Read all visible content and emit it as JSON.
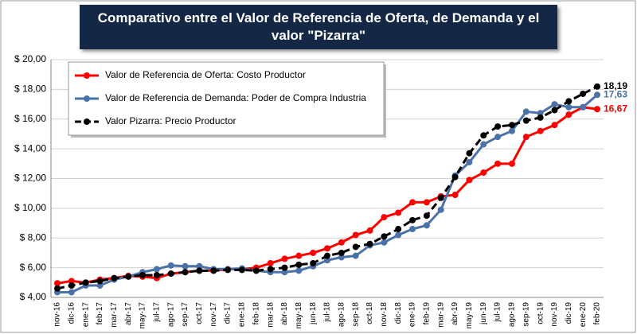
{
  "chart_data": {
    "type": "line",
    "title": "Comparativo entre el Valor de Referencia de Oferta, de Demanda y el valor \"Pizarra\"",
    "categories": [
      "nov-16",
      "dic-16",
      "ene-17",
      "feb-17",
      "mar-17",
      "abr-17",
      "may-17",
      "jul-17",
      "ago-17",
      "sep-17",
      "oct-17",
      "nov-17",
      "dic-17",
      "ene-18",
      "feb-18",
      "mar-18",
      "abr-18",
      "may-18",
      "jun-18",
      "jul-18",
      "ago-18",
      "sep-18",
      "oct-18",
      "nov-18",
      "dic-18",
      "ene-19",
      "feb-19",
      "mar-19",
      "abr-19",
      "may-19",
      "jun-19",
      "jul-19",
      "ago-19",
      "sep-19",
      "oct-19",
      "nov-19",
      "dic-19",
      "ene-20",
      "feb-20"
    ],
    "series": [
      {
        "name": "Valor de Referencia de Oferta: Costo Productor",
        "color": "#ff0000",
        "dashed": false,
        "values": [
          4.95,
          5.1,
          5.0,
          5.2,
          5.3,
          5.45,
          5.4,
          5.3,
          5.6,
          5.7,
          5.8,
          5.8,
          5.9,
          5.9,
          6.0,
          6.3,
          6.6,
          6.8,
          7.0,
          7.3,
          7.7,
          8.2,
          8.5,
          9.4,
          9.7,
          10.4,
          10.4,
          10.8,
          10.9,
          11.9,
          12.4,
          13.0,
          13.0,
          14.8,
          15.2,
          15.6,
          16.3,
          16.8,
          16.67
        ],
        "value_labels": [
          null,
          null,
          null,
          null,
          null,
          null,
          null,
          null,
          null,
          null,
          null,
          null,
          null,
          null,
          null,
          null,
          null,
          null,
          null,
          null,
          null,
          null,
          null,
          null,
          null,
          null,
          null,
          null,
          null,
          null,
          null,
          null,
          null,
          null,
          null,
          null,
          null,
          null,
          "16,67"
        ]
      },
      {
        "name": "Valor de Referencia de Demanda: Poder de Compra Industria",
        "color": "#4a72a8",
        "dashed": false,
        "values": [
          4.35,
          4.35,
          4.8,
          4.8,
          5.2,
          5.4,
          5.7,
          5.9,
          6.15,
          6.1,
          6.1,
          5.9,
          5.9,
          5.95,
          5.8,
          5.7,
          5.7,
          5.8,
          6.1,
          6.5,
          6.7,
          6.8,
          7.5,
          7.7,
          8.2,
          8.6,
          8.85,
          9.9,
          12.2,
          13.1,
          14.3,
          14.8,
          15.2,
          16.5,
          16.4,
          17.0,
          16.8,
          16.8,
          17.63
        ],
        "value_labels": [
          null,
          null,
          null,
          null,
          null,
          null,
          null,
          null,
          null,
          null,
          null,
          null,
          null,
          null,
          null,
          null,
          null,
          null,
          null,
          null,
          null,
          null,
          null,
          null,
          null,
          null,
          null,
          null,
          null,
          null,
          null,
          null,
          null,
          null,
          null,
          null,
          null,
          null,
          "17,63"
        ]
      },
      {
        "name": "Valor Pizarra: Precio Productor",
        "color": "#000000",
        "dashed": true,
        "values": [
          4.6,
          4.8,
          5.0,
          5.1,
          5.3,
          5.4,
          5.5,
          5.5,
          5.6,
          5.7,
          5.8,
          5.8,
          5.85,
          5.85,
          5.8,
          5.9,
          6.0,
          6.2,
          6.3,
          6.8,
          7.0,
          7.4,
          7.6,
          8.1,
          8.6,
          9.2,
          9.5,
          10.7,
          12.1,
          13.7,
          14.9,
          15.5,
          15.6,
          15.9,
          16.1,
          16.6,
          17.2,
          17.7,
          18.19
        ],
        "value_labels": [
          null,
          null,
          null,
          null,
          null,
          null,
          null,
          null,
          null,
          null,
          null,
          null,
          null,
          null,
          null,
          null,
          null,
          null,
          null,
          null,
          null,
          null,
          null,
          null,
          null,
          null,
          null,
          null,
          null,
          null,
          null,
          null,
          null,
          null,
          null,
          null,
          null,
          null,
          "18,19"
        ]
      }
    ],
    "ylim": [
      4,
      20
    ],
    "yticks": [
      {
        "value": 4,
        "label": "$ 4,00"
      },
      {
        "value": 6,
        "label": "$ 6,00"
      },
      {
        "value": 8,
        "label": "$ 8,00"
      },
      {
        "value": 10,
        "label": "$ 10,00"
      },
      {
        "value": 12,
        "label": "$ 12,00"
      },
      {
        "value": 14,
        "label": "$ 14,00"
      },
      {
        "value": 16,
        "label": "$ 16,00"
      },
      {
        "value": 18,
        "label": "$ 18,00"
      },
      {
        "value": 20,
        "label": "$ 20,00"
      }
    ],
    "grid": true,
    "legend": "top-left"
  }
}
